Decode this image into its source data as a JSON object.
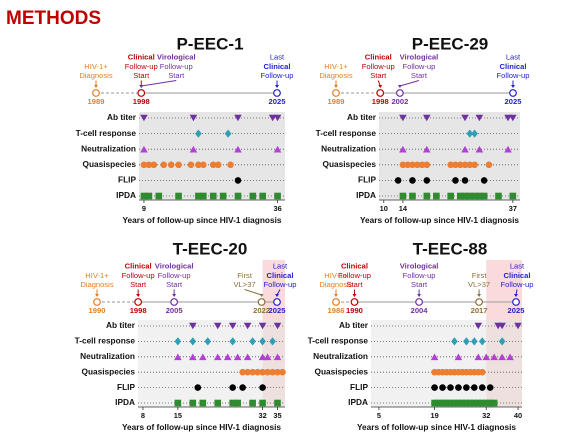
{
  "header": {
    "title": "METHODS"
  },
  "chart_data": [
    {
      "type": "dot_timeline",
      "title": "P-EEC-1",
      "x_label": "Years of follow-up since HIV-1 diagnosis",
      "timeline_xlim": [
        1989,
        2025
      ],
      "events": [
        {
          "label": [
            "HIV-1+",
            "Diagnosis"
          ],
          "year": 1989,
          "color": "#e67e22",
          "bold": []
        },
        {
          "label": [
            "Clinical",
            "Follow-up",
            "Start"
          ],
          "year": 1998,
          "color": "#c00000",
          "bold": [
            0
          ]
        },
        {
          "label": [
            "Virological",
            "Follow-up",
            "Start"
          ],
          "color": "#7030a0",
          "bold": [
            0
          ]
        },
        {
          "label": [
            "Last",
            "Clinical",
            "Follow-up"
          ],
          "year": 2025,
          "color": "#2222cc",
          "bold": [
            1
          ]
        }
      ],
      "xlim": [
        8,
        37.5
      ],
      "xticks": [
        9,
        36
      ],
      "series": [
        {
          "name": "Ab titer",
          "color": "#7030a0",
          "marker": "triangle-down",
          "values": [
            9,
            19,
            28,
            35,
            36
          ]
        },
        {
          "name": "T-cell response",
          "color": "#2e9fb5",
          "marker": "diamond",
          "values": [
            20,
            26
          ]
        },
        {
          "name": "Neutralization",
          "color": "#b33fd6",
          "marker": "triangle-up",
          "values": [
            9,
            19,
            28,
            36
          ]
        },
        {
          "name": "Quasispecies",
          "color": "#ed7d31",
          "marker": "circle",
          "values": [
            9,
            10,
            11,
            13,
            14.5,
            16,
            18.5,
            20,
            21,
            23,
            24,
            26.5
          ]
        },
        {
          "name": "FLIP",
          "color": "#000000",
          "marker": "circle",
          "values": [
            28
          ]
        },
        {
          "name": "IPDA",
          "color": "#2e8b2e",
          "marker": "square",
          "values": [
            9,
            10,
            12,
            16,
            20,
            21,
            23,
            25,
            28,
            31,
            33,
            36
          ]
        }
      ]
    },
    {
      "type": "dot_timeline",
      "title": "P-EEC-29",
      "x_label": "Years of follow-up since HIV-1 diagnosis",
      "timeline_xlim": [
        1989,
        2025
      ],
      "events": [
        {
          "label": [
            "HIV-1+",
            "Diagnosis"
          ],
          "year": 1989,
          "color": "#e67e22",
          "bold": []
        },
        {
          "label": [
            "Clinical",
            "Follow-up",
            "Start"
          ],
          "year": 1998,
          "color": "#c00000",
          "bold": [
            0
          ]
        },
        {
          "label": [
            "Virological",
            "Follow-up",
            "Start"
          ],
          "year": 2002,
          "color": "#7030a0",
          "bold": [
            0
          ]
        },
        {
          "label": [
            "Last",
            "Clinical",
            "Follow-up"
          ],
          "year": 2025,
          "color": "#2222cc",
          "bold": [
            1
          ]
        }
      ],
      "xlim": [
        9,
        38.5
      ],
      "xticks": [
        10,
        14,
        37
      ],
      "series": [
        {
          "name": "Ab titer",
          "color": "#7030a0",
          "marker": "triangle-down",
          "values": [
            14,
            19,
            27,
            30,
            36,
            37
          ]
        },
        {
          "name": "T-cell response",
          "color": "#2e9fb5",
          "marker": "diamond",
          "values": [
            28,
            29
          ]
        },
        {
          "name": "Neutralization",
          "color": "#b33fd6",
          "marker": "triangle-up",
          "values": [
            14,
            19,
            27,
            30,
            36
          ]
        },
        {
          "name": "Quasispecies",
          "color": "#ed7d31",
          "marker": "circle",
          "values": [
            14,
            15,
            16,
            17,
            18,
            19,
            24,
            25,
            26,
            27,
            28,
            29,
            32
          ]
        },
        {
          "name": "FLIP",
          "color": "#000000",
          "marker": "circle",
          "values": [
            13,
            16,
            19,
            25,
            27,
            31
          ]
        },
        {
          "name": "IPDA",
          "color": "#2e8b2e",
          "marker": "square",
          "values": [
            14,
            16,
            19,
            21,
            24,
            26,
            27,
            28,
            29,
            30,
            31,
            34,
            37
          ]
        }
      ]
    },
    {
      "type": "dot_timeline",
      "title": "T-EEC-20",
      "x_label": "Years of follow-up since HIV-1 diagnosis",
      "timeline_xlim": [
        1990,
        2025
      ],
      "events": [
        {
          "label": [
            "HIV-1+",
            "Diagnosis"
          ],
          "year": 1990,
          "color": "#e67e22",
          "bold": []
        },
        {
          "label": [
            "Clinical",
            "Follow-up",
            "Start"
          ],
          "year": 1998,
          "color": "#c00000",
          "bold": [
            0
          ]
        },
        {
          "label": [
            "Virological",
            "Follow-up",
            "Start"
          ],
          "year": 2005,
          "color": "#7030a0",
          "bold": [
            0
          ]
        },
        {
          "label": [
            "First",
            "VL>37"
          ],
          "year": 2022,
          "color": "#8b6f3a",
          "bold": []
        },
        {
          "label": [
            "Last",
            "Clinical",
            "Follow-up"
          ],
          "year": 2025,
          "color": "#2222cc",
          "bold": [
            1
          ]
        }
      ],
      "xlim": [
        7,
        36.5
      ],
      "xticks": [
        8,
        15,
        32,
        35
      ],
      "shade_from": 32,
      "series": [
        {
          "name": "Ab titer",
          "color": "#7030a0",
          "marker": "triangle-down",
          "values": [
            18,
            23,
            26,
            29,
            32,
            35
          ]
        },
        {
          "name": "T-cell response",
          "color": "#2e9fb5",
          "marker": "diamond",
          "values": [
            15,
            18,
            21,
            26,
            30,
            32,
            34
          ]
        },
        {
          "name": "Neutralization",
          "color": "#b33fd6",
          "marker": "triangle-up",
          "values": [
            15,
            18,
            20,
            23,
            25,
            27,
            29,
            32,
            33,
            35
          ]
        },
        {
          "name": "Quasispecies",
          "color": "#ed7d31",
          "marker": "circle",
          "values": [
            28,
            29,
            30,
            31,
            32,
            33,
            34,
            35,
            36
          ]
        },
        {
          "name": "FLIP",
          "color": "#000000",
          "marker": "circle",
          "values": [
            19,
            26,
            28,
            32
          ]
        },
        {
          "name": "IPDA",
          "color": "#2e8b2e",
          "marker": "square",
          "values": [
            15,
            18,
            20,
            23,
            26,
            27,
            30,
            32,
            35
          ]
        }
      ]
    },
    {
      "type": "dot_timeline",
      "title": "T-EEC-88",
      "x_label": "Years of follow-up since HIV-1 diagnosis",
      "timeline_xlim": [
        1986,
        2025
      ],
      "events": [
        {
          "label": [
            "HIV-1+",
            "Diagnosis"
          ],
          "year": 1986,
          "color": "#e67e22",
          "bold": []
        },
        {
          "label": [
            "Clinical",
            "Follow-up",
            "Start"
          ],
          "year": 1990,
          "color": "#c00000",
          "bold": [
            0
          ]
        },
        {
          "label": [
            "Virological",
            "Follow-up",
            "Start"
          ],
          "year": 2004,
          "color": "#7030a0",
          "bold": [
            0
          ]
        },
        {
          "label": [
            "First",
            "VL>37"
          ],
          "year": 2017,
          "color": "#8b6f3a",
          "bold": []
        },
        {
          "label": [
            "Last",
            "Clinical",
            "Follow-up"
          ],
          "year": 2025,
          "color": "#2222cc",
          "bold": [
            1
          ]
        }
      ],
      "xlim": [
        3,
        41
      ],
      "xticks": [
        5,
        19,
        32,
        40
      ],
      "shade_from": 32,
      "series": [
        {
          "name": "Ab titer",
          "color": "#7030a0",
          "marker": "triangle-down",
          "values": [
            30,
            35,
            36,
            40
          ]
        },
        {
          "name": "T-cell response",
          "color": "#2e9fb5",
          "marker": "diamond",
          "values": [
            24,
            27,
            29,
            31,
            36
          ]
        },
        {
          "name": "Neutralization",
          "color": "#b33fd6",
          "marker": "triangle-up",
          "values": [
            19,
            25,
            30,
            32,
            34,
            36,
            38
          ]
        },
        {
          "name": "Quasispecies",
          "color": "#ed7d31",
          "marker": "circle",
          "values": [
            19,
            20,
            21,
            22,
            23,
            24,
            25,
            26,
            27,
            28,
            29,
            30,
            31
          ]
        },
        {
          "name": "FLIP",
          "color": "#000000",
          "marker": "circle",
          "values": [
            19,
            21,
            23,
            25,
            27,
            29,
            31,
            33
          ]
        },
        {
          "name": "IPDA",
          "color": "#2e8b2e",
          "marker": "square",
          "values": [
            19,
            20,
            21,
            22,
            23,
            24,
            25,
            26,
            27,
            28,
            29,
            30,
            31,
            32,
            33,
            34
          ]
        }
      ]
    }
  ]
}
